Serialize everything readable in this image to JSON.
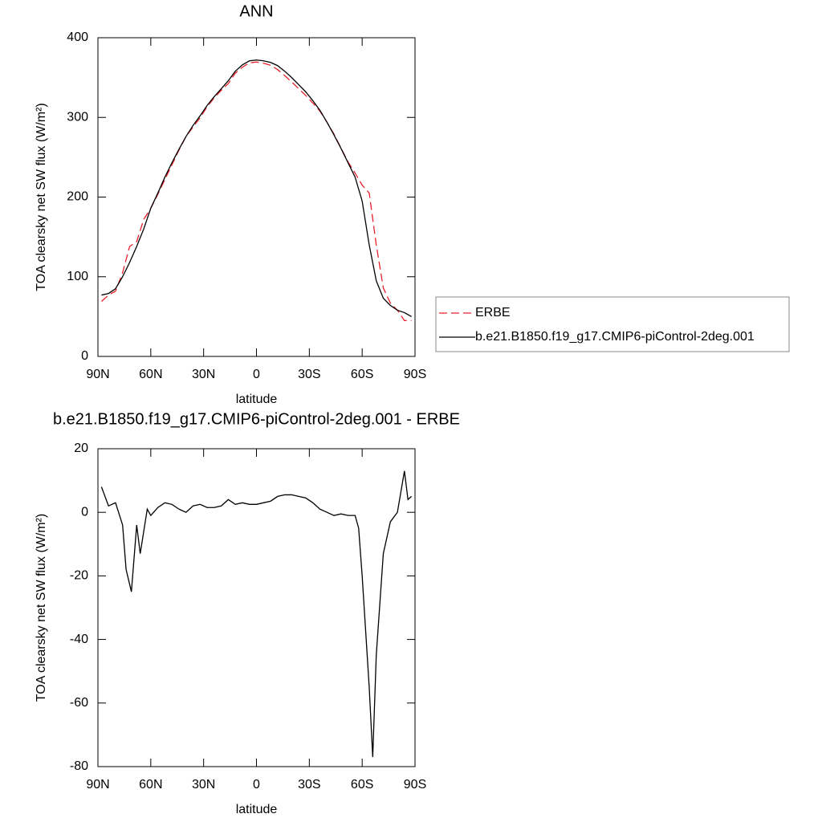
{
  "chart_data": [
    {
      "type": "line",
      "title": "ANN",
      "xlabel": "latitude",
      "ylabel": "TOA clearsky net SW flux (W/m²)",
      "x": [
        88,
        84,
        80,
        76,
        72,
        68,
        64,
        60,
        56,
        52,
        48,
        44,
        40,
        36,
        32,
        28,
        24,
        20,
        16,
        12,
        8,
        4,
        0,
        -4,
        -8,
        -12,
        -16,
        -20,
        -24,
        -28,
        -32,
        -36,
        -40,
        -44,
        -48,
        -52,
        -56,
        -60,
        -64,
        -68,
        -72,
        -76,
        -80,
        -84,
        -88
      ],
      "series": [
        {
          "name": "ERBE",
          "color": "#e8202a",
          "dashed": true,
          "values": [
            69,
            77,
            82,
            105,
            138,
            144,
            172,
            186,
            203.5,
            222,
            240.5,
            259,
            276,
            288,
            299.5,
            313.5,
            324.5,
            334,
            342.5,
            355.5,
            363,
            368.5,
            369.5,
            368,
            365.5,
            360,
            352.5,
            344.5,
            336,
            327.5,
            318,
            308,
            294,
            279,
            261.5,
            244,
            230,
            215,
            205,
            140,
            86,
            67,
            58,
            45,
            45
          ]
        },
        {
          "name": "b.e21.B1850.f19_g17.CMIP6-piControl-2deg.001",
          "color": "#000000",
          "dashed": false,
          "values": [
            77,
            79,
            85,
            100,
            118,
            138,
            160,
            186,
            205,
            225,
            243,
            260,
            276,
            290,
            302,
            315,
            326,
            336,
            346,
            358,
            366,
            371,
            372,
            371,
            369,
            365,
            358,
            350,
            341,
            332,
            321,
            309,
            294,
            278,
            261,
            243,
            225,
            195,
            140,
            95,
            73,
            64,
            58,
            55,
            50
          ]
        }
      ],
      "xlim": [
        90,
        -90
      ],
      "xticks": [
        {
          "value": 90,
          "label": "90N"
        },
        {
          "value": 60,
          "label": "60N"
        },
        {
          "value": 30,
          "label": "30N"
        },
        0,
        {
          "value": -30,
          "label": "30S"
        },
        {
          "value": -60,
          "label": "60S"
        },
        {
          "value": -90,
          "label": "90S"
        }
      ],
      "ylim": [
        0,
        400
      ],
      "yticks": [
        0,
        100,
        200,
        300,
        400
      ],
      "legend": "right"
    },
    {
      "type": "line",
      "title": "b.e21.B1850.f19_g17.CMIP6-piControl-2deg.001 - ERBE",
      "xlabel": "latitude",
      "ylabel": "TOA clearsky net SW flux (W/m²)",
      "x": [
        88,
        84,
        80,
        76,
        74,
        71,
        68,
        66,
        62,
        60,
        56,
        52,
        48,
        44,
        40,
        36,
        32,
        28,
        24,
        20,
        16,
        12,
        8,
        4,
        0,
        -4,
        -8,
        -12,
        -16,
        -20,
        -24,
        -28,
        -32,
        -36,
        -40,
        -44,
        -48,
        -52,
        -56,
        -58,
        -60,
        -64,
        -66,
        -68,
        -72,
        -76,
        -80,
        -84,
        -86,
        -88
      ],
      "series": [
        {
          "color": "#000000",
          "dashed": false,
          "values": [
            8,
            2,
            3,
            -4,
            -18,
            -25,
            -4,
            -13,
            1,
            -1,
            1.5,
            3,
            2.5,
            1,
            0,
            2,
            2.5,
            1.5,
            1.5,
            2,
            4,
            2.5,
            3,
            2.5,
            2.5,
            3,
            3.5,
            5,
            5.5,
            5.5,
            5,
            4.5,
            3,
            1,
            0,
            -1,
            -0.5,
            -1,
            -1,
            -5,
            -20,
            -55,
            -77,
            -45,
            -13,
            -3,
            0,
            13,
            4,
            5
          ]
        }
      ],
      "xlim": [
        90,
        -90
      ],
      "xticks": [
        {
          "value": 90,
          "label": "90N"
        },
        {
          "value": 60,
          "label": "60N"
        },
        {
          "value": 30,
          "label": "30N"
        },
        0,
        {
          "value": -30,
          "label": "30S"
        },
        {
          "value": -60,
          "label": "60S"
        },
        {
          "value": -90,
          "label": "90S"
        }
      ],
      "ylim": [
        -80,
        20
      ],
      "yticks": [
        -80,
        -60,
        -40,
        -20,
        0,
        20
      ]
    }
  ]
}
